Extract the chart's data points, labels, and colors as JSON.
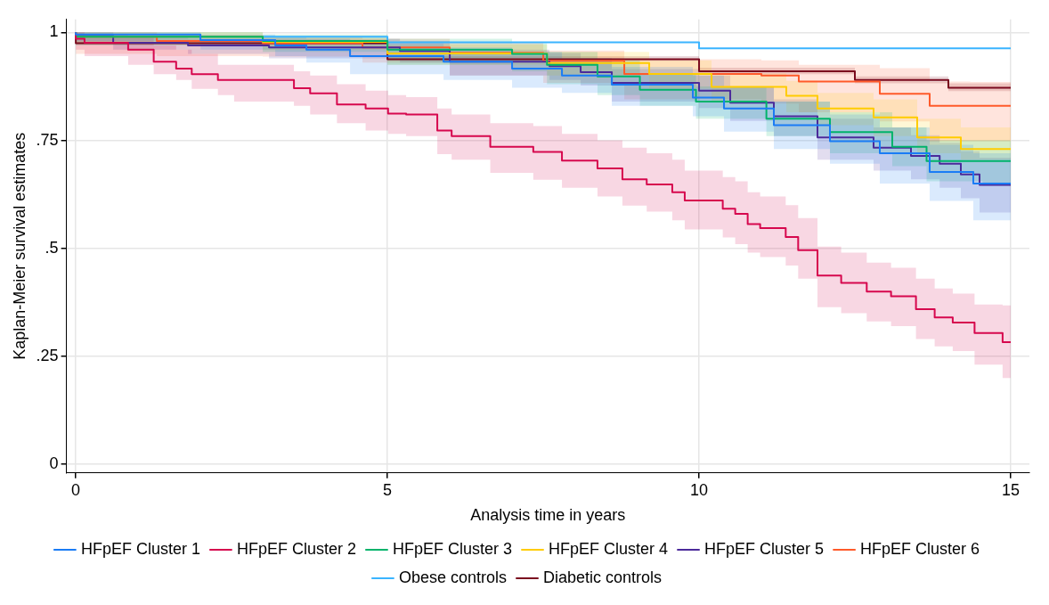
{
  "chart_data": {
    "type": "step",
    "xlabel": "Analysis time in years",
    "ylabel": "Kaplan-Meier survival estimates",
    "xlim": [
      -0.15,
      15.3
    ],
    "ylim": [
      -0.02,
      1.03
    ],
    "xticks": [
      0,
      5,
      10,
      15
    ],
    "yticks": [
      0,
      {
        "value": 0.25,
        "label": ".25"
      },
      {
        "value": 0.5,
        "label": ".5"
      },
      {
        "value": 0.75,
        "label": ".75"
      },
      1
    ],
    "grid": true,
    "legend": "bottom",
    "marker": "none",
    "series": [
      {
        "name": "HFpEF Cluster 1",
        "color": "#1a7cf5",
        "x": [
          0,
          2,
          3.2,
          3.7,
          4.4,
          5.9,
          7,
          7.8,
          8.6,
          9.9,
          10.4,
          11.2,
          12.1,
          12.9,
          13.7,
          14.4,
          15
        ],
        "values": [
          1,
          0.995,
          0.982,
          0.97,
          0.96,
          0.945,
          0.932,
          0.916,
          0.9,
          0.879,
          0.849,
          0.824,
          0.785,
          0.748,
          0.72,
          0.677,
          0.65
        ],
        "lower": [
          1,
          0.98,
          0.96,
          0.945,
          0.93,
          0.903,
          0.89,
          0.872,
          0.86,
          0.83,
          0.806,
          0.77,
          0.73,
          0.696,
          0.65,
          0.61,
          0.565
        ],
        "upper": [
          1,
          1,
          0.995,
          0.99,
          0.985,
          0.975,
          0.965,
          0.955,
          0.94,
          0.92,
          0.9,
          0.875,
          0.84,
          0.81,
          0.78,
          0.74,
          0.72
        ]
      },
      {
        "name": "HFpEF Cluster 2",
        "color": "#d6084e",
        "x": [
          0,
          0.14,
          0.84,
          1.25,
          1.61,
          1.86,
          2.28,
          2.54,
          3.5,
          3.76,
          4.19,
          4.65,
          5.01,
          5.3,
          5.8,
          6.03,
          6.65,
          7.34,
          7.8,
          8.37,
          8.77,
          9.16,
          9.57,
          9.77,
          10.38,
          10.58,
          10.78,
          10.98,
          11.39,
          11.59,
          11.9,
          12.28,
          12.69,
          13.08,
          13.48,
          13.78,
          14.07,
          14.42,
          14.87,
          15
        ],
        "values": [
          1,
          0.985,
          0.976,
          0.96,
          0.932,
          0.916,
          0.903,
          0.89,
          0.89,
          0.871,
          0.859,
          0.833,
          0.824,
          0.812,
          0.81,
          0.773,
          0.76,
          0.735,
          0.723,
          0.703,
          0.685,
          0.66,
          0.648,
          0.63,
          0.611,
          0.592,
          0.58,
          0.556,
          0.547,
          0.526,
          0.496,
          0.437,
          0.42,
          0.4,
          0.389,
          0.359,
          0.34,
          0.328,
          0.304,
          0.283
        ],
        "lower": [
          1,
          0.96,
          0.945,
          0.925,
          0.903,
          0.89,
          0.869,
          0.855,
          0.84,
          0.83,
          0.81,
          0.79,
          0.773,
          0.765,
          0.76,
          0.718,
          0.705,
          0.675,
          0.659,
          0.64,
          0.62,
          0.599,
          0.585,
          0.565,
          0.544,
          0.525,
          0.51,
          0.49,
          0.48,
          0.46,
          0.43,
          0.364,
          0.35,
          0.331,
          0.32,
          0.29,
          0.273,
          0.262,
          0.231,
          0.2
        ],
        "upper": [
          1,
          1,
          0.995,
          0.99,
          0.97,
          0.96,
          0.95,
          0.925,
          0.925,
          0.91,
          0.9,
          0.88,
          0.865,
          0.855,
          0.85,
          0.824,
          0.81,
          0.79,
          0.783,
          0.765,
          0.75,
          0.733,
          0.72,
          0.705,
          0.68,
          0.665,
          0.655,
          0.63,
          0.62,
          0.6,
          0.57,
          0.504,
          0.49,
          0.467,
          0.455,
          0.43,
          0.407,
          0.395,
          0.37,
          0.368
        ]
      },
      {
        "name": "HFpEF Cluster 3",
        "color": "#00b36b",
        "x": [
          0,
          3,
          5,
          7,
          7.56,
          8.37,
          9.05,
          9.95,
          11.08,
          12.1,
          13.1,
          13.65,
          14.55,
          15
        ],
        "values": [
          1,
          0.99,
          0.98,
          0.96,
          0.95,
          0.925,
          0.898,
          0.867,
          0.84,
          0.8,
          0.769,
          0.735,
          0.702,
          0.702
        ],
        "lower": [
          1,
          0.97,
          0.955,
          0.925,
          0.91,
          0.88,
          0.855,
          0.83,
          0.8,
          0.76,
          0.72,
          0.69,
          0.655,
          0.645
        ],
        "upper": [
          1,
          1,
          0.995,
          0.985,
          0.975,
          0.955,
          0.935,
          0.905,
          0.875,
          0.84,
          0.815,
          0.78,
          0.75,
          0.75
        ]
      },
      {
        "name": "HFpEF Cluster 4",
        "color": "#ffcc00",
        "x": [
          0,
          3,
          5,
          7.56,
          9.2,
          10.2,
          11.4,
          11.9,
          12.8,
          13.5,
          14.2,
          14.8,
          15
        ],
        "values": [
          1,
          0.99,
          0.978,
          0.951,
          0.929,
          0.904,
          0.874,
          0.853,
          0.824,
          0.803,
          0.757,
          0.73,
          0.73
        ],
        "lower": [
          1,
          0.975,
          0.96,
          0.925,
          0.9,
          0.87,
          0.84,
          0.815,
          0.785,
          0.76,
          0.72,
          0.705,
          0.705
        ],
        "upper": [
          1,
          1,
          0.99,
          0.972,
          0.955,
          0.935,
          0.905,
          0.888,
          0.86,
          0.845,
          0.8,
          0.78,
          0.78
        ]
      },
      {
        "name": "HFpEF Cluster 5",
        "color": "#4b2a9a",
        "x": [
          0,
          0.6,
          1.8,
          3.1,
          5.2,
          6,
          7.6,
          8.1,
          8.6,
          10,
          10.5,
          11.2,
          11.9,
          12.8,
          13.4,
          13.86,
          14.2,
          14.5,
          14.78,
          15
        ],
        "values": [
          1,
          0.992,
          0.976,
          0.97,
          0.965,
          0.957,
          0.932,
          0.922,
          0.908,
          0.883,
          0.865,
          0.837,
          0.806,
          0.757,
          0.733,
          0.714,
          0.696,
          0.671,
          0.647,
          0.647
        ],
        "lower": [
          1,
          0.975,
          0.96,
          0.95,
          0.94,
          0.93,
          0.9,
          0.89,
          0.877,
          0.84,
          0.825,
          0.795,
          0.76,
          0.705,
          0.68,
          0.66,
          0.64,
          0.616,
          0.583,
          0.583
        ],
        "upper": [
          1,
          1,
          0.99,
          0.985,
          0.985,
          0.98,
          0.96,
          0.952,
          0.94,
          0.915,
          0.9,
          0.875,
          0.845,
          0.8,
          0.78,
          0.762,
          0.745,
          0.725,
          0.71,
          0.71
        ]
      },
      {
        "name": "HFpEF Cluster 6",
        "color": "#ff5a2a",
        "x": [
          0,
          1.3,
          3,
          4.6,
          6,
          7.5,
          8.8,
          11,
          11.6,
          12.9,
          13.7,
          14.35,
          15
        ],
        "values": [
          1,
          0.99,
          0.98,
          0.975,
          0.965,
          0.953,
          0.934,
          0.904,
          0.9,
          0.886,
          0.858,
          0.83,
          0.83
        ],
        "lower": [
          1,
          0.95,
          0.945,
          0.944,
          0.93,
          0.9,
          0.883,
          0.845,
          0.835,
          0.815,
          0.794,
          0.748,
          0.748
        ],
        "upper": [
          1,
          1,
          0.995,
          0.99,
          0.985,
          0.977,
          0.958,
          0.938,
          0.935,
          0.925,
          0.917,
          0.886,
          0.885
        ]
      },
      {
        "name": "Obese controls",
        "color": "#3ab4ff",
        "x": [
          0,
          5,
          10,
          15
        ],
        "values": [
          1,
          0.99,
          0.977,
          0.963
        ]
      },
      {
        "name": "Diabetic controls",
        "color": "#7a0a1e",
        "x": [
          0,
          5,
          10,
          12.5,
          14,
          15
        ],
        "values": [
          1,
          0.975,
          0.938,
          0.91,
          0.89,
          0.872
        ],
        "lower": [
          1,
          0.972,
          0.934,
          0.903,
          0.882,
          0.864
        ],
        "upper": [
          1,
          0.978,
          0.945,
          0.918,
          0.898,
          0.882
        ]
      }
    ]
  }
}
